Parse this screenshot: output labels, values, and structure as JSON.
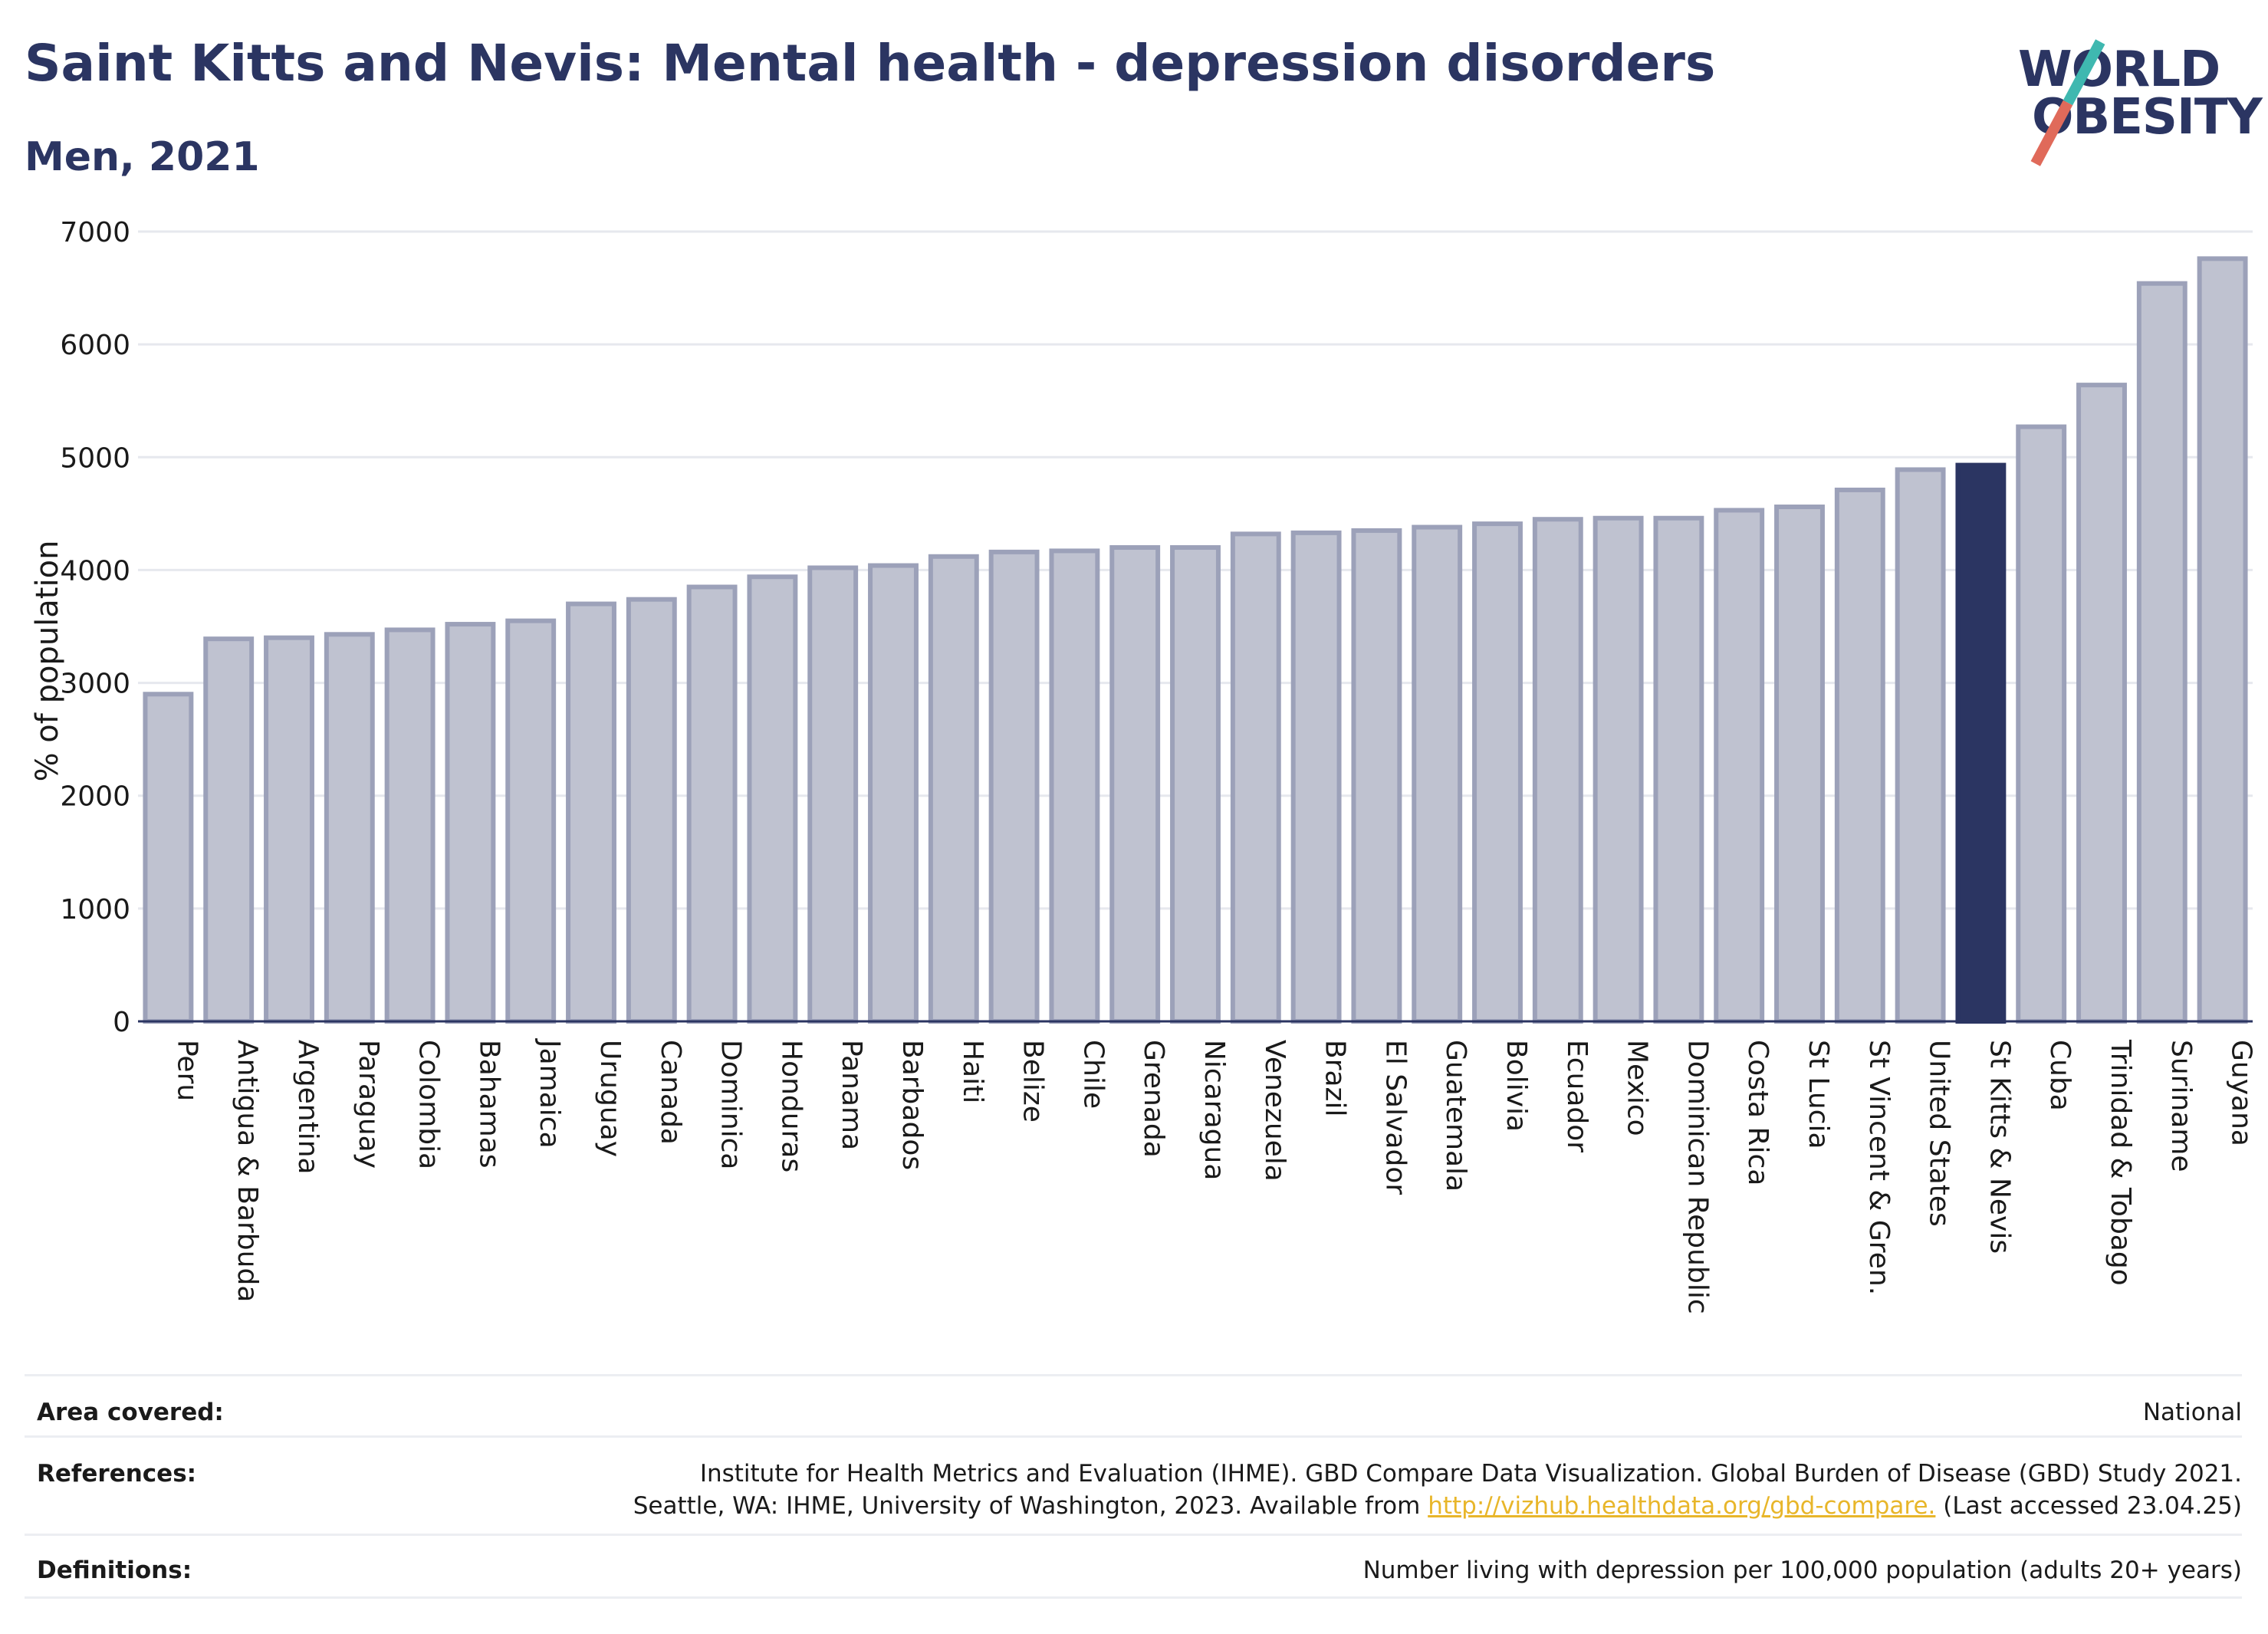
{
  "title": "Saint Kitts and Nevis: Mental health - depression disorders",
  "subtitle": "Men, 2021",
  "logo": {
    "line1": "WORLD",
    "line2": "OBESITY"
  },
  "colors": {
    "bar": "#bfc2d0",
    "bar_border": "#9ca1b9",
    "highlight": "#2b3562",
    "text": "#2b3562"
  },
  "chart_data": {
    "type": "bar",
    "ylabel": "% of population",
    "ylim": [
      0,
      7000
    ],
    "yticks": [
      0,
      1000,
      2000,
      3000,
      4000,
      5000,
      6000,
      7000
    ],
    "grid": true,
    "highlight_category": "St Kitts & Nevis",
    "categories": [
      "Peru",
      "Antigua & Barbuda",
      "Argentina",
      "Paraguay",
      "Colombia",
      "Bahamas",
      "Jamaica",
      "Uruguay",
      "Canada",
      "Dominica",
      "Honduras",
      "Panama",
      "Barbados",
      "Haiti",
      "Belize",
      "Chile",
      "Grenada",
      "Nicaragua",
      "Venezuela",
      "Brazil",
      "El Salvador",
      "Guatemala",
      "Bolivia",
      "Ecuador",
      "Mexico",
      "Dominican Republic",
      "Costa Rica",
      "St Lucia",
      "St Vincent & Gren.",
      "United States",
      "St Kitts & Nevis",
      "Cuba",
      "Trinidad & Tobago",
      "Suriname",
      "Guyana"
    ],
    "values": [
      2900,
      3390,
      3400,
      3430,
      3470,
      3520,
      3550,
      3700,
      3740,
      3850,
      3940,
      4020,
      4040,
      4120,
      4160,
      4170,
      4200,
      4200,
      4320,
      4330,
      4350,
      4380,
      4410,
      4450,
      4460,
      4460,
      4530,
      4560,
      4710,
      4890,
      4930,
      5270,
      5640,
      6540,
      6760
    ]
  },
  "info": {
    "area_label": "Area covered:",
    "area_value": "National",
    "references_label": "References:",
    "references_line1": "Institute for Health Metrics and Evaluation (IHME). GBD Compare Data Visualization. Global Burden of Disease (GBD) Study 2021.",
    "references_line2_pre": "Seattle, WA: IHME, University of Washington, 2023. Available from ",
    "references_link": "http://vizhub.healthdata.org/gbd-compare.",
    "references_line2_post": " (Last accessed 23.04.25)",
    "definitions_label": "Definitions:",
    "definitions_value": "Number living with depression per 100,000 population (adults 20+ years)"
  }
}
